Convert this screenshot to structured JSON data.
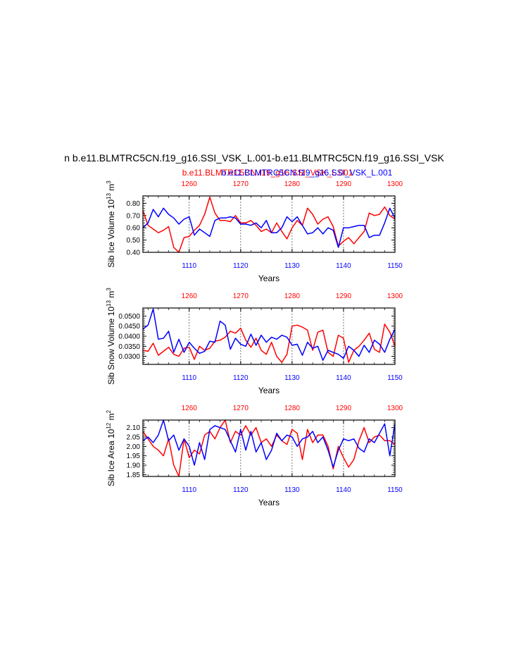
{
  "header": {
    "title": "n b.e11.BLMTRC5CN.f19_g16.SSI_VSK_L.001-b.e11.BLMTRC5CN.f19_g16.SSI_VSK",
    "case1": "b.e11.BLMTRC5CN.f19_g16.SSI_VSK_L.001",
    "case2": "b.e11.BLMTRC5CN.f19_g16.SSI_VSK_L.001"
  },
  "colors": {
    "series_red": "#ff0000",
    "series_blue": "#0000ff",
    "axis": "#000000"
  },
  "chart_data": [
    {
      "type": "line",
      "ylabel": "Sib Ice Volume 10",
      "ylabel_exp": "13",
      "ylabel_unit": " m",
      "ylabel_unit_exp": "3",
      "xlabel": "Years",
      "xlim": [
        1101,
        1150
      ],
      "ylim": [
        0.4,
        0.86
      ],
      "yticks": [
        0.4,
        0.5,
        0.6,
        0.7,
        0.8
      ],
      "yticklabels": [
        "0.40",
        "0.50",
        "0.60",
        "0.70",
        "0.80"
      ],
      "xticks_bottom": [
        1110,
        1120,
        1130,
        1140,
        1150
      ],
      "xticks_top": [
        1260,
        1270,
        1280,
        1290,
        1300
      ],
      "top_offset": 150,
      "x": [
        1101,
        1102,
        1103,
        1104,
        1105,
        1106,
        1107,
        1108,
        1109,
        1110,
        1111,
        1112,
        1113,
        1114,
        1115,
        1116,
        1117,
        1118,
        1119,
        1120,
        1121,
        1122,
        1123,
        1124,
        1125,
        1126,
        1127,
        1128,
        1129,
        1130,
        1131,
        1132,
        1133,
        1134,
        1135,
        1136,
        1137,
        1138,
        1139,
        1140,
        1141,
        1142,
        1143,
        1144,
        1145,
        1146,
        1147,
        1148,
        1149,
        1150
      ],
      "series": [
        {
          "color": "red",
          "values": [
            0.74,
            0.62,
            0.59,
            0.56,
            0.58,
            0.61,
            0.44,
            0.4,
            0.52,
            0.53,
            0.58,
            0.62,
            0.71,
            0.85,
            0.72,
            0.66,
            0.66,
            0.65,
            0.7,
            0.64,
            0.64,
            0.66,
            0.62,
            0.57,
            0.59,
            0.56,
            0.64,
            0.57,
            0.51,
            0.6,
            0.66,
            0.62,
            0.76,
            0.71,
            0.63,
            0.67,
            0.69,
            0.61,
            0.45,
            0.49,
            0.52,
            0.47,
            0.52,
            0.57,
            0.72,
            0.7,
            0.71,
            0.77,
            0.7,
            0.67
          ]
        },
        {
          "color": "blue",
          "values": [
            0.6,
            0.64,
            0.75,
            0.69,
            0.76,
            0.71,
            0.68,
            0.63,
            0.67,
            0.69,
            0.54,
            0.59,
            0.56,
            0.53,
            0.66,
            0.68,
            0.68,
            0.69,
            0.68,
            0.63,
            0.63,
            0.62,
            0.64,
            0.6,
            0.66,
            0.56,
            0.56,
            0.6,
            0.69,
            0.65,
            0.69,
            0.62,
            0.55,
            0.56,
            0.6,
            0.55,
            0.6,
            0.58,
            0.44,
            0.6,
            0.6,
            0.61,
            0.62,
            0.62,
            0.52,
            0.54,
            0.54,
            0.64,
            0.76,
            0.68
          ]
        }
      ]
    },
    {
      "type": "line",
      "ylabel": "Sib Snow Volume 10",
      "ylabel_exp": "13",
      "ylabel_unit": " m",
      "ylabel_unit_exp": "3",
      "xlabel": "Years",
      "xlim": [
        1101,
        1150
      ],
      "ylim": [
        0.026,
        0.054
      ],
      "yticks": [
        0.03,
        0.035,
        0.04,
        0.045,
        0.05
      ],
      "yticklabels": [
        "0.0300",
        "0.0350",
        "0.0400",
        "0.0450",
        "0.0500"
      ],
      "xticks_bottom": [
        1110,
        1120,
        1130,
        1140,
        1150
      ],
      "xticks_top": [
        1260,
        1270,
        1280,
        1290,
        1300
      ],
      "top_offset": 150,
      "x": [
        1101,
        1102,
        1103,
        1104,
        1105,
        1106,
        1107,
        1108,
        1109,
        1110,
        1111,
        1112,
        1113,
        1114,
        1115,
        1116,
        1117,
        1118,
        1119,
        1120,
        1121,
        1122,
        1123,
        1124,
        1125,
        1126,
        1127,
        1128,
        1129,
        1130,
        1131,
        1132,
        1133,
        1134,
        1135,
        1136,
        1137,
        1138,
        1139,
        1140,
        1141,
        1142,
        1143,
        1144,
        1145,
        1146,
        1147,
        1148,
        1149,
        1150
      ],
      "series": [
        {
          "color": "red",
          "values": [
            0.033,
            0.0325,
            0.0365,
            0.0305,
            0.0325,
            0.0345,
            0.031,
            0.03,
            0.034,
            0.0345,
            0.0285,
            0.035,
            0.033,
            0.034,
            0.0375,
            0.038,
            0.0395,
            0.0425,
            0.0415,
            0.044,
            0.038,
            0.0345,
            0.039,
            0.033,
            0.031,
            0.037,
            0.03,
            0.027,
            0.031,
            0.045,
            0.0455,
            0.0445,
            0.043,
            0.033,
            0.042,
            0.043,
            0.032,
            0.03,
            0.0405,
            0.039,
            0.027,
            0.033,
            0.035,
            0.038,
            0.0415,
            0.0335,
            0.032,
            0.046,
            0.042,
            0.035
          ]
        },
        {
          "color": "blue",
          "values": [
            0.0435,
            0.0455,
            0.0535,
            0.0385,
            0.039,
            0.0425,
            0.032,
            0.0385,
            0.032,
            0.037,
            0.034,
            0.0315,
            0.0325,
            0.0375,
            0.037,
            0.0475,
            0.0455,
            0.0335,
            0.039,
            0.036,
            0.035,
            0.041,
            0.0355,
            0.0405,
            0.037,
            0.0395,
            0.0385,
            0.0405,
            0.0395,
            0.0355,
            0.036,
            0.0305,
            0.037,
            0.034,
            0.035,
            0.028,
            0.033,
            0.032,
            0.031,
            0.029,
            0.035,
            0.033,
            0.03,
            0.0355,
            0.032,
            0.038,
            0.036,
            0.032,
            0.0385,
            0.0435
          ]
        }
      ]
    },
    {
      "type": "line",
      "ylabel": "Sib Ice Area 10",
      "ylabel_exp": "12",
      "ylabel_unit": " m",
      "ylabel_unit_exp": "2",
      "xlabel": "Years",
      "xlim": [
        1101,
        1150
      ],
      "ylim": [
        1.84,
        2.14
      ],
      "yticks": [
        1.85,
        1.9,
        1.95,
        2.0,
        2.05,
        2.1
      ],
      "yticklabels": [
        "1.85",
        "1.90",
        "1.95",
        "2.00",
        "2.05",
        "2.10"
      ],
      "xticks_bottom": [
        1110,
        1120,
        1130,
        1140,
        1150
      ],
      "xticks_top": [
        1260,
        1270,
        1280,
        1290,
        1300
      ],
      "top_offset": 150,
      "x": [
        1101,
        1102,
        1103,
        1104,
        1105,
        1106,
        1107,
        1108,
        1109,
        1110,
        1111,
        1112,
        1113,
        1114,
        1115,
        1116,
        1117,
        1118,
        1119,
        1120,
        1121,
        1122,
        1123,
        1124,
        1125,
        1126,
        1127,
        1128,
        1129,
        1130,
        1131,
        1132,
        1133,
        1134,
        1135,
        1136,
        1137,
        1138,
        1139,
        1140,
        1141,
        1142,
        1143,
        1144,
        1145,
        1146,
        1147,
        1148,
        1149,
        1150
      ],
      "series": [
        {
          "color": "red",
          "values": [
            2.08,
            2.04,
            2.0,
            1.98,
            1.95,
            2.04,
            1.9,
            1.84,
            2.04,
            1.94,
            1.98,
            1.96,
            2.06,
            2.08,
            2.04,
            2.1,
            2.14,
            2.02,
            2.08,
            2.06,
            2.11,
            2.06,
            2.1,
            2.02,
            2.04,
            2.0,
            2.06,
            2.03,
            2.01,
            2.09,
            2.07,
            1.93,
            2.09,
            2.02,
            2.06,
            2.06,
            2.0,
            1.88,
            2.0,
            1.94,
            1.89,
            1.93,
            2.03,
            2.1,
            2.02,
            2.05,
            2.06,
            2.03,
            2.03,
            2.01
          ]
        },
        {
          "color": "blue",
          "values": [
            2.03,
            2.05,
            2.02,
            2.06,
            2.14,
            2.03,
            2.06,
            1.98,
            2.04,
            2.0,
            1.9,
            2.02,
            1.93,
            2.09,
            2.11,
            2.1,
            2.09,
            2.03,
            1.97,
            2.09,
            1.98,
            2.08,
            1.97,
            2.02,
            1.93,
            1.98,
            2.07,
            2.03,
            2.06,
            2.05,
            2.0,
            2.04,
            2.05,
            2.08,
            2.02,
            2.05,
            1.98,
            1.89,
            1.98,
            2.04,
            2.03,
            2.04,
            1.99,
            1.97,
            2.04,
            2.02,
            2.07,
            2.12,
            1.95,
            2.12
          ]
        }
      ]
    }
  ]
}
